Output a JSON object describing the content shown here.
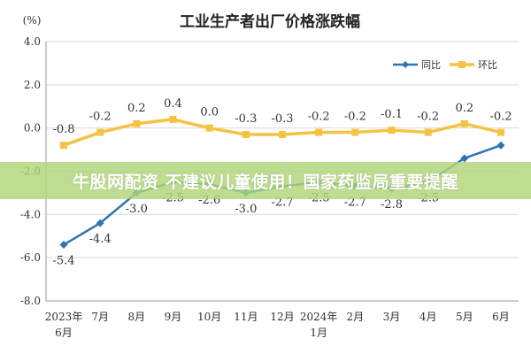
{
  "chart_data": {
    "type": "line",
    "title": "工业生产者出厂价格涨跌幅",
    "ylabel": "(%)",
    "ylim": [
      -8.0,
      4.0
    ],
    "yticks": [
      "4.0",
      "2.0",
      "0.0",
      "-2.0",
      "-4.0",
      "-6.0",
      "-8.0"
    ],
    "categories": [
      [
        "2023年",
        "6月"
      ],
      [
        "7月"
      ],
      [
        "8月"
      ],
      [
        "9月"
      ],
      [
        "10月"
      ],
      [
        "11月"
      ],
      [
        "12月"
      ],
      [
        "2024年",
        "1月"
      ],
      [
        "2月"
      ],
      [
        "3月"
      ],
      [
        "4月"
      ],
      [
        "5月"
      ],
      [
        "6月"
      ]
    ],
    "legend_position": "top-right",
    "series": [
      {
        "name": "同比",
        "color": "#2e74b5",
        "values": [
          -5.4,
          -4.4,
          -3.0,
          -2.5,
          -2.6,
          -3.0,
          -2.7,
          -2.5,
          -2.7,
          -2.8,
          -2.5,
          -1.4,
          -0.8
        ],
        "labels": [
          "-5.4",
          "-4.4",
          "-3.0",
          "-2.5",
          "-2.6",
          "-3.0",
          "-2.7",
          "-2.5",
          "-2.7",
          "-2.8",
          "-2.5",
          "",
          ""
        ]
      },
      {
        "name": "环比",
        "color": "#f5c242",
        "values": [
          -0.8,
          -0.2,
          0.2,
          0.4,
          0.0,
          -0.3,
          -0.3,
          -0.2,
          -0.2,
          -0.1,
          -0.2,
          0.2,
          -0.2
        ],
        "labels": [
          "-0.8",
          "-0.2",
          "0.2",
          "0.4",
          "0.0",
          "-0.3",
          "-0.3",
          "-0.2",
          "-0.2",
          "-0.1",
          "-0.2",
          "0.2",
          "-0.2"
        ]
      }
    ]
  },
  "banner": {
    "text": "牛股网配资 不建议儿童使用！国家药监局重要提醒"
  }
}
